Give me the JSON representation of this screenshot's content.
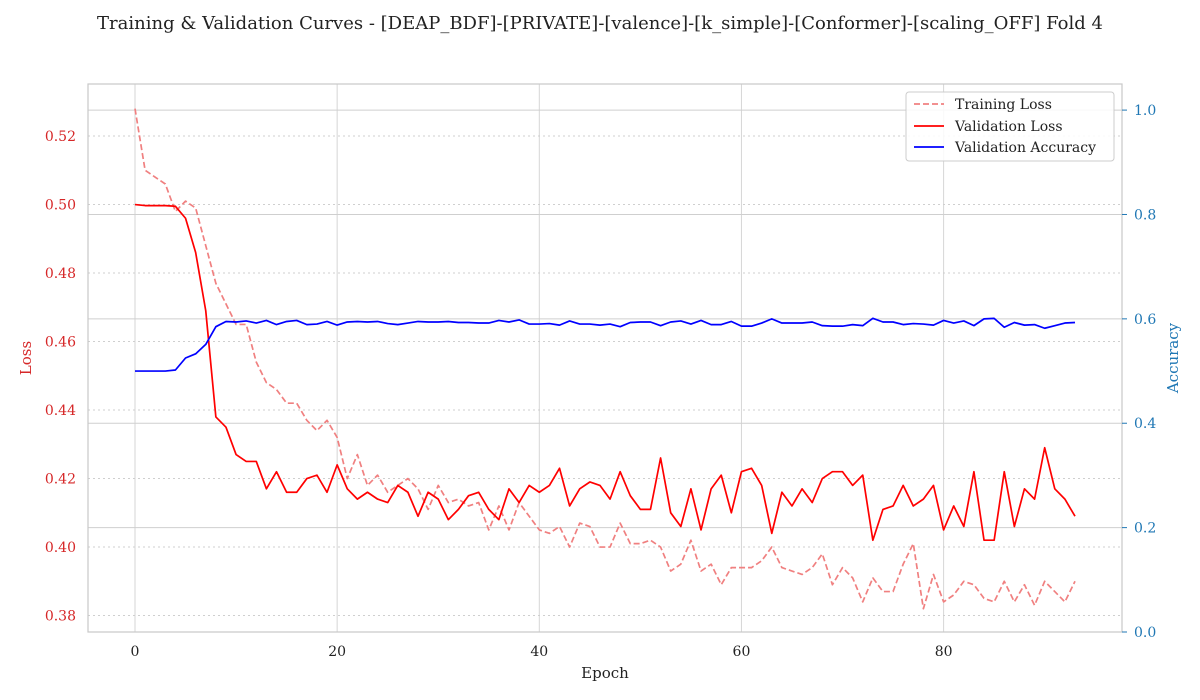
{
  "chart_data": {
    "type": "line",
    "title": "Training & Validation Curves - [DEAP_BDF]-[PRIVATE]-[valence]-[k_simple]-[Conformer]-[scaling_OFF] Fold 4",
    "xlabel": "Epoch",
    "ylabel_left": "Loss",
    "ylabel_right": "Accuracy",
    "xlim": [
      -4.65,
      97.65
    ],
    "ylim_left": [
      0.3752,
      0.5352
    ],
    "ylim_right": [
      0.0,
      1.05
    ],
    "x_ticks": [
      "0",
      "20",
      "40",
      "60",
      "80"
    ],
    "y_left_ticks": [
      "0.38",
      "0.40",
      "0.42",
      "0.44",
      "0.46",
      "0.48",
      "0.50",
      "0.52"
    ],
    "y_right_ticks": [
      "0.0",
      "0.2",
      "0.4",
      "0.6",
      "0.8",
      "1.0"
    ],
    "grid": true,
    "legend_position": "top-right",
    "colors": {
      "training_loss": "#f08080",
      "validation_loss": "#ff0000",
      "validation_accuracy": "#0000ff",
      "left_axis": "#d62728",
      "right_axis": "#1f77b4"
    },
    "series": [
      {
        "name": "Training Loss",
        "axis": "left",
        "style": "dashed",
        "values": [
          0.528,
          0.51,
          0.508,
          0.506,
          0.498,
          0.501,
          0.499,
          0.488,
          0.477,
          0.471,
          0.465,
          0.465,
          0.454,
          0.448,
          0.446,
          0.442,
          0.442,
          0.437,
          0.434,
          0.437,
          0.432,
          0.42,
          0.427,
          0.418,
          0.421,
          0.416,
          0.418,
          0.42,
          0.417,
          0.411,
          0.418,
          0.413,
          0.414,
          0.412,
          0.413,
          0.405,
          0.412,
          0.405,
          0.413,
          0.409,
          0.405,
          0.404,
          0.406,
          0.4,
          0.407,
          0.406,
          0.4,
          0.4,
          0.407,
          0.401,
          0.401,
          0.402,
          0.4,
          0.393,
          0.395,
          0.402,
          0.393,
          0.395,
          0.389,
          0.394,
          0.394,
          0.394,
          0.396,
          0.4,
          0.394,
          0.393,
          0.392,
          0.394,
          0.398,
          0.389,
          0.394,
          0.391,
          0.384,
          0.391,
          0.387,
          0.387,
          0.395,
          0.401,
          0.382,
          0.392,
          0.384,
          0.386,
          0.39,
          0.389,
          0.385,
          0.384,
          0.39,
          0.384,
          0.389,
          0.383,
          0.39,
          0.387,
          0.384,
          0.39
        ]
      },
      {
        "name": "Validation Loss",
        "axis": "left",
        "style": "solid",
        "values": [
          0.5,
          0.4997,
          0.4997,
          0.4997,
          0.4995,
          0.496,
          0.486,
          0.469,
          0.438,
          0.435,
          0.427,
          0.425,
          0.425,
          0.417,
          0.422,
          0.416,
          0.416,
          0.42,
          0.421,
          0.416,
          0.424,
          0.417,
          0.414,
          0.416,
          0.414,
          0.413,
          0.418,
          0.416,
          0.409,
          0.416,
          0.414,
          0.408,
          0.411,
          0.415,
          0.416,
          0.411,
          0.408,
          0.417,
          0.413,
          0.418,
          0.416,
          0.418,
          0.423,
          0.412,
          0.417,
          0.419,
          0.418,
          0.414,
          0.422,
          0.415,
          0.411,
          0.411,
          0.426,
          0.41,
          0.406,
          0.417,
          0.405,
          0.417,
          0.421,
          0.41,
          0.422,
          0.423,
          0.418,
          0.404,
          0.416,
          0.412,
          0.417,
          0.413,
          0.42,
          0.422,
          0.422,
          0.418,
          0.421,
          0.402,
          0.411,
          0.412,
          0.418,
          0.412,
          0.414,
          0.418,
          0.405,
          0.412,
          0.406,
          0.422,
          0.402,
          0.402,
          0.422,
          0.406,
          0.417,
          0.414,
          0.429,
          0.417,
          0.414,
          0.409
        ]
      },
      {
        "name": "Validation Accuracy",
        "axis": "right",
        "style": "solid",
        "values": [
          0.5,
          0.5,
          0.5,
          0.5,
          0.502,
          0.525,
          0.533,
          0.551,
          0.585,
          0.595,
          0.594,
          0.596,
          0.592,
          0.597,
          0.589,
          0.595,
          0.597,
          0.589,
          0.59,
          0.595,
          0.588,
          0.594,
          0.595,
          0.594,
          0.595,
          0.591,
          0.589,
          0.592,
          0.595,
          0.594,
          0.594,
          0.595,
          0.593,
          0.593,
          0.592,
          0.592,
          0.597,
          0.594,
          0.598,
          0.59,
          0.59,
          0.591,
          0.588,
          0.596,
          0.59,
          0.59,
          0.588,
          0.59,
          0.585,
          0.593,
          0.594,
          0.594,
          0.587,
          0.594,
          0.596,
          0.59,
          0.597,
          0.589,
          0.589,
          0.595,
          0.586,
          0.586,
          0.592,
          0.6,
          0.592,
          0.592,
          0.592,
          0.594,
          0.587,
          0.586,
          0.586,
          0.589,
          0.587,
          0.601,
          0.594,
          0.594,
          0.589,
          0.591,
          0.59,
          0.588,
          0.597,
          0.592,
          0.596,
          0.587,
          0.6,
          0.601,
          0.584,
          0.593,
          0.588,
          0.589,
          0.582,
          0.587,
          0.592,
          0.593
        ]
      }
    ]
  }
}
